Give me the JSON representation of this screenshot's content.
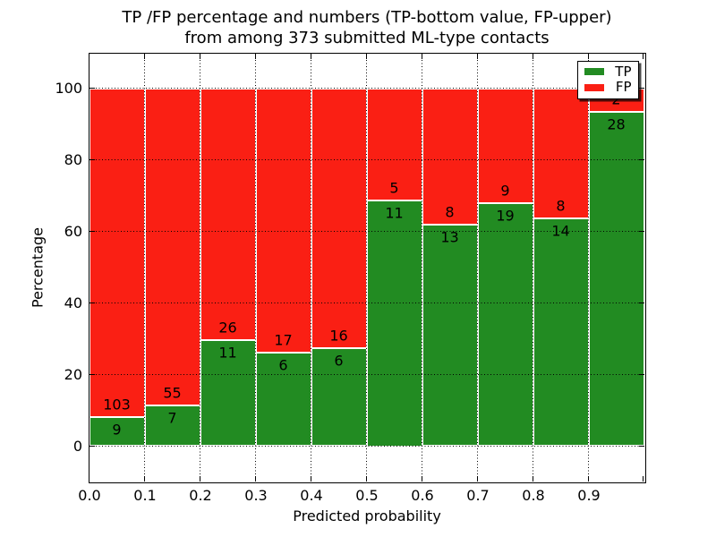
{
  "title": {
    "line1": "TP /FP percentage and numbers (TP-bottom value, FP-upper)",
    "line2": "from among 373 submitted ML-type contacts"
  },
  "chart_data": {
    "type": "bar",
    "stacked": true,
    "normalized": "each bin scaled to 100%",
    "title": "TP /FP percentage and numbers (TP-bottom value, FP-upper)\nfrom among 373 submitted ML-type contacts",
    "xlabel": "Predicted probability",
    "ylabel": "Percentage",
    "xlim": [
      0.0,
      1.0
    ],
    "ylim": [
      -10,
      110
    ],
    "x_tick_labels": [
      "0.0",
      "0.1",
      "0.2",
      "0.3",
      "0.4",
      "0.5",
      "0.6",
      "0.7",
      "0.8",
      "0.9"
    ],
    "y_tick_values": [
      0,
      20,
      40,
      60,
      80,
      100
    ],
    "y_tick_labels": [
      "0",
      "20",
      "40",
      "60",
      "80",
      "100"
    ],
    "grid": "dotted, both axes, drawn over bars",
    "total_contacts": 373,
    "bins": [
      {
        "range": "0.0-0.1",
        "tp": 9,
        "fp": 103,
        "tp_pct": 8.04
      },
      {
        "range": "0.1-0.2",
        "tp": 7,
        "fp": 55,
        "tp_pct": 11.29
      },
      {
        "range": "0.2-0.3",
        "tp": 11,
        "fp": 26,
        "tp_pct": 29.73
      },
      {
        "range": "0.3-0.4",
        "tp": 6,
        "fp": 17,
        "tp_pct": 26.09
      },
      {
        "range": "0.4-0.5",
        "tp": 6,
        "fp": 16,
        "tp_pct": 27.27
      },
      {
        "range": "0.5-0.6",
        "tp": 11,
        "fp": 5,
        "tp_pct": 68.75
      },
      {
        "range": "0.6-0.7",
        "tp": 13,
        "fp": 8,
        "tp_pct": 61.9
      },
      {
        "range": "0.7-0.8",
        "tp": 19,
        "fp": 9,
        "tp_pct": 67.86
      },
      {
        "range": "0.8-0.9",
        "tp": 14,
        "fp": 8,
        "tp_pct": 63.64
      },
      {
        "range": "0.9-1.0",
        "tp": 28,
        "fp": 2,
        "tp_pct": 93.33
      }
    ],
    "legend": {
      "position": "upper right",
      "entries": [
        {
          "label": "TP",
          "color": "#228b22"
        },
        {
          "label": "FP",
          "color": "#fa1f14"
        }
      ]
    }
  },
  "colors": {
    "tp": "#228b22",
    "fp": "#fa1f14",
    "grid": "#000000",
    "background": "#ffffff"
  }
}
